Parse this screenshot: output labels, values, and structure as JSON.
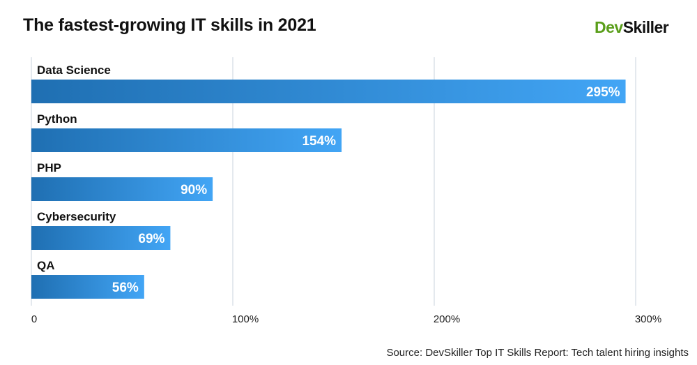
{
  "header": {
    "title": "The fastest-growing IT skills in 2021",
    "logo_part1": "Dev",
    "logo_part2": "Skiller"
  },
  "footer": {
    "source": "Source: DevSkiller Top IT Skills Report: Tech talent hiring insights"
  },
  "colors": {
    "bar_start": "#1f6fb2",
    "bar_end": "#42a5f5",
    "grid": "#c8d3dc",
    "logo_green": "#5a9e1a"
  },
  "chart_data": {
    "type": "bar",
    "orientation": "horizontal",
    "title": "The fastest-growing IT skills in 2021",
    "categories": [
      "Data Science",
      "Python",
      "PHP",
      "Cybersecurity",
      "QA"
    ],
    "values": [
      295,
      154,
      90,
      69,
      56
    ],
    "value_labels": [
      "295%",
      "154%",
      "90%",
      "69%",
      "56%"
    ],
    "xlim": [
      0,
      300
    ],
    "x_ticks": [
      0,
      100,
      200,
      300
    ],
    "x_tick_labels": [
      "0",
      "100%",
      "200%",
      "300%"
    ],
    "grid": true,
    "xlabel": "",
    "ylabel": ""
  }
}
